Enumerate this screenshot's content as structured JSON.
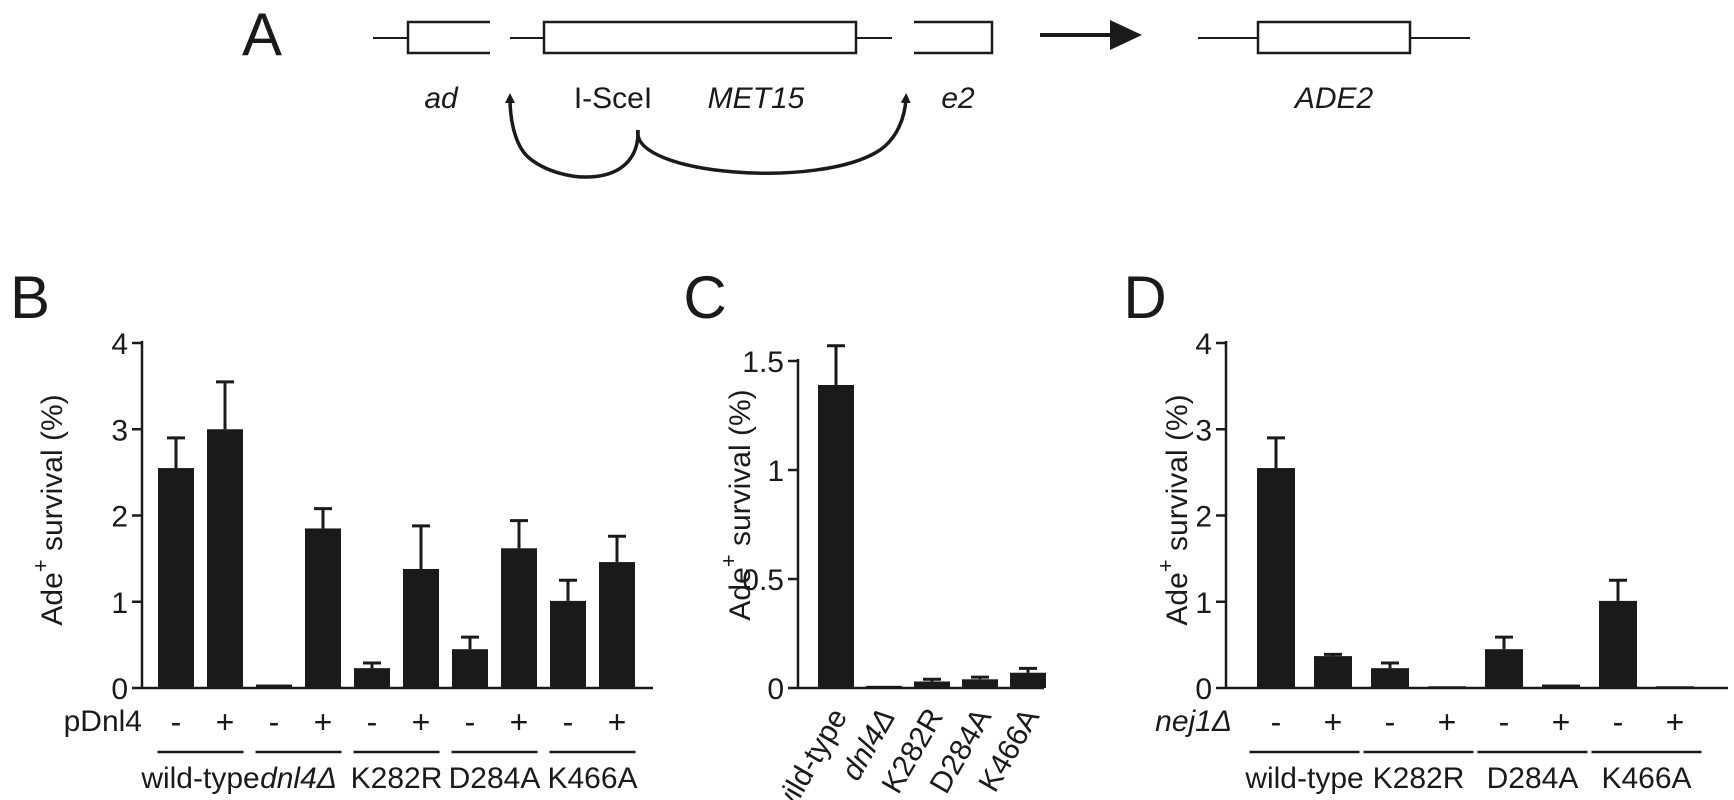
{
  "panel_a": {
    "panel_label": "A",
    "gene_left": "ad",
    "site_label": "I-SceI",
    "marker_label": "MET15",
    "gene_right": "e2",
    "product_label": "ADE2"
  },
  "chart_data": [
    {
      "panel_label": "B",
      "type": "bar",
      "ylabel_main": "Ade",
      "ylabel_sup": "+",
      "ylabel_rest": " survival (%)",
      "ylim": [
        0,
        4
      ],
      "yticks": [
        "0",
        "1",
        "2",
        "3",
        "4"
      ],
      "condition_label": "pDnl4",
      "condition_italic": false,
      "bars": [
        {
          "group": "wild-type",
          "sign": "-",
          "value": 2.55,
          "error": 0.35
        },
        {
          "group": "wild-type",
          "sign": "+",
          "value": 3.0,
          "error": 0.55
        },
        {
          "group": "dnl4Δ",
          "sign": "-",
          "value": 0.04,
          "error": 0.0
        },
        {
          "group": "dnl4Δ",
          "sign": "+",
          "value": 1.85,
          "error": 0.23
        },
        {
          "group": "K282R",
          "sign": "-",
          "value": 0.23,
          "error": 0.06
        },
        {
          "group": "K282R",
          "sign": "+",
          "value": 1.38,
          "error": 0.5
        },
        {
          "group": "D284A",
          "sign": "-",
          "value": 0.45,
          "error": 0.14
        },
        {
          "group": "D284A",
          "sign": "+",
          "value": 1.62,
          "error": 0.32
        },
        {
          "group": "K466A",
          "sign": "-",
          "value": 1.01,
          "error": 0.24
        },
        {
          "group": "K466A",
          "sign": "+",
          "value": 1.46,
          "error": 0.3
        }
      ],
      "groups": [
        {
          "label": "wild-type",
          "italic": false
        },
        {
          "label": "dnl4Δ",
          "italic": true
        },
        {
          "label": "K282R",
          "italic": false
        },
        {
          "label": "D284A",
          "italic": false
        },
        {
          "label": "K466A",
          "italic": false
        }
      ]
    },
    {
      "panel_label": "C",
      "type": "bar",
      "ylabel_main": "Ade",
      "ylabel_sup": "+",
      "ylabel_rest": " survival (%)",
      "ylim": [
        0,
        1.5
      ],
      "yticks": [
        "0",
        "0.5",
        "1",
        "1.5"
      ],
      "bars": [
        {
          "label": "wild-type",
          "italic": false,
          "value": 1.39,
          "error": 0.18
        },
        {
          "label": "dnl4Δ",
          "italic": true,
          "value": 0.01,
          "error": 0.0
        },
        {
          "label": "K282R",
          "italic": false,
          "value": 0.03,
          "error": 0.01
        },
        {
          "label": "D284A",
          "italic": false,
          "value": 0.04,
          "error": 0.01
        },
        {
          "label": "K466A",
          "italic": false,
          "value": 0.07,
          "error": 0.02
        }
      ]
    },
    {
      "panel_label": "D",
      "type": "bar",
      "ylabel_main": "Ade",
      "ylabel_sup": "+",
      "ylabel_rest": " survival (%)",
      "ylim": [
        0,
        4
      ],
      "yticks": [
        "0",
        "1",
        "2",
        "3",
        "4"
      ],
      "condition_label": "nej1Δ",
      "condition_italic": true,
      "bars": [
        {
          "group": "wild-type",
          "sign": "-",
          "value": 2.55,
          "error": 0.35
        },
        {
          "group": "wild-type",
          "sign": "+",
          "value": 0.37,
          "error": 0.02
        },
        {
          "group": "K282R",
          "sign": "-",
          "value": 0.23,
          "error": 0.06
        },
        {
          "group": "K282R",
          "sign": "+",
          "value": 0.02,
          "error": 0.0
        },
        {
          "group": "D284A",
          "sign": "-",
          "value": 0.45,
          "error": 0.14
        },
        {
          "group": "D284A",
          "sign": "+",
          "value": 0.04,
          "error": 0.0
        },
        {
          "group": "K466A",
          "sign": "-",
          "value": 1.01,
          "error": 0.24
        },
        {
          "group": "K466A",
          "sign": "+",
          "value": 0.02,
          "error": 0.0
        }
      ],
      "groups": [
        {
          "label": "wild-type",
          "italic": false
        },
        {
          "label": "K282R",
          "italic": false
        },
        {
          "label": "D284A",
          "italic": false
        },
        {
          "label": "K466A",
          "italic": false
        }
      ]
    }
  ]
}
